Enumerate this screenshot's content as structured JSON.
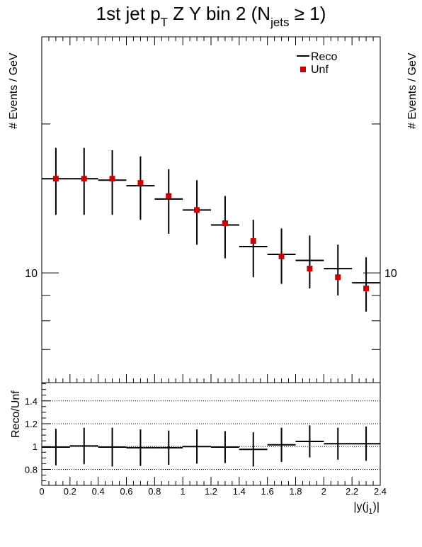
{
  "title": {
    "main": "1st jet p",
    "sub_T": "T",
    "mid": " Z Y bin 2 (N",
    "sub_jets": "jets",
    "tail": " ≥ 1)"
  },
  "legend": {
    "placement": "top-right",
    "reco_label": "Reco",
    "unf_label": "Unf"
  },
  "colors": {
    "unf_marker": "#cc0000",
    "reco_line": "#000000",
    "frame": "#000000"
  },
  "chart_data": [
    {
      "type": "scatter",
      "panel": "main",
      "ylabel": "# Events / GeV",
      "yscale": "log",
      "ylim": [
        6,
        30
      ],
      "y_tick_labels": [
        "10"
      ],
      "x_bins": [
        [
          0.0,
          0.2
        ],
        [
          0.2,
          0.4
        ],
        [
          0.4,
          0.6
        ],
        [
          0.6,
          0.8
        ],
        [
          0.8,
          1.0
        ],
        [
          1.0,
          1.2
        ],
        [
          1.2,
          1.4
        ],
        [
          1.4,
          1.6
        ],
        [
          1.6,
          1.8
        ],
        [
          1.8,
          2.0
        ],
        [
          2.0,
          2.2
        ],
        [
          2.2,
          2.4
        ]
      ],
      "series": [
        {
          "name": "Reco",
          "style": "errorbar",
          "x": [
            0.1,
            0.3,
            0.5,
            0.7,
            0.9,
            1.1,
            1.3,
            1.5,
            1.7,
            1.9,
            2.1,
            2.3
          ],
          "values": [
            15.5,
            15.5,
            15.4,
            15.0,
            14.1,
            13.4,
            12.5,
            11.3,
            10.9,
            10.6,
            10.2,
            9.55
          ],
          "err_low": [
            2.4,
            2.4,
            2.3,
            2.2,
            2.1,
            2.0,
            1.8,
            1.5,
            1.4,
            1.3,
            1.2,
            1.2
          ],
          "err_high": [
            2.4,
            2.4,
            2.3,
            2.2,
            2.1,
            2.0,
            1.8,
            1.5,
            1.4,
            1.3,
            1.2,
            1.2
          ]
        },
        {
          "name": "Unf",
          "style": "marker",
          "x": [
            0.1,
            0.3,
            0.5,
            0.7,
            0.9,
            1.1,
            1.3,
            1.5,
            1.7,
            1.9,
            2.1,
            2.3
          ],
          "values": [
            15.5,
            15.5,
            15.5,
            15.2,
            14.3,
            13.4,
            12.6,
            11.6,
            10.8,
            10.2,
            9.8,
            9.3
          ]
        }
      ]
    },
    {
      "type": "scatter",
      "panel": "ratio",
      "xlabel": "|y(j",
      "xlabel_sub": "1",
      "xlabel_tail": ")|",
      "ylabel": "Reco/Unf",
      "xlim": [
        0,
        2.4
      ],
      "ylim": [
        0.66,
        1.56
      ],
      "x_tick_labels": [
        "0",
        "0.2",
        "0.4",
        "0.6",
        "0.8",
        "1",
        "1.2",
        "1.4",
        "1.6",
        "1.8",
        "2",
        "2.2",
        "2.4"
      ],
      "y_tick_labels": [
        "0.8",
        "1",
        "1.2",
        "1.4"
      ],
      "grid_lines": [
        0.8,
        1.0,
        1.2,
        1.4
      ],
      "series": [
        {
          "name": "Reco/Unf",
          "x": [
            0.1,
            0.3,
            0.5,
            0.7,
            0.9,
            1.1,
            1.3,
            1.5,
            1.7,
            1.9,
            2.1,
            2.3
          ],
          "values": [
            0.995,
            1.005,
            0.995,
            0.99,
            0.99,
            1.0,
            0.995,
            0.975,
            1.015,
            1.045,
            1.025,
            1.025
          ],
          "err": [
            0.16,
            0.16,
            0.17,
            0.16,
            0.15,
            0.15,
            0.14,
            0.15,
            0.15,
            0.14,
            0.14,
            0.15
          ]
        }
      ]
    }
  ]
}
